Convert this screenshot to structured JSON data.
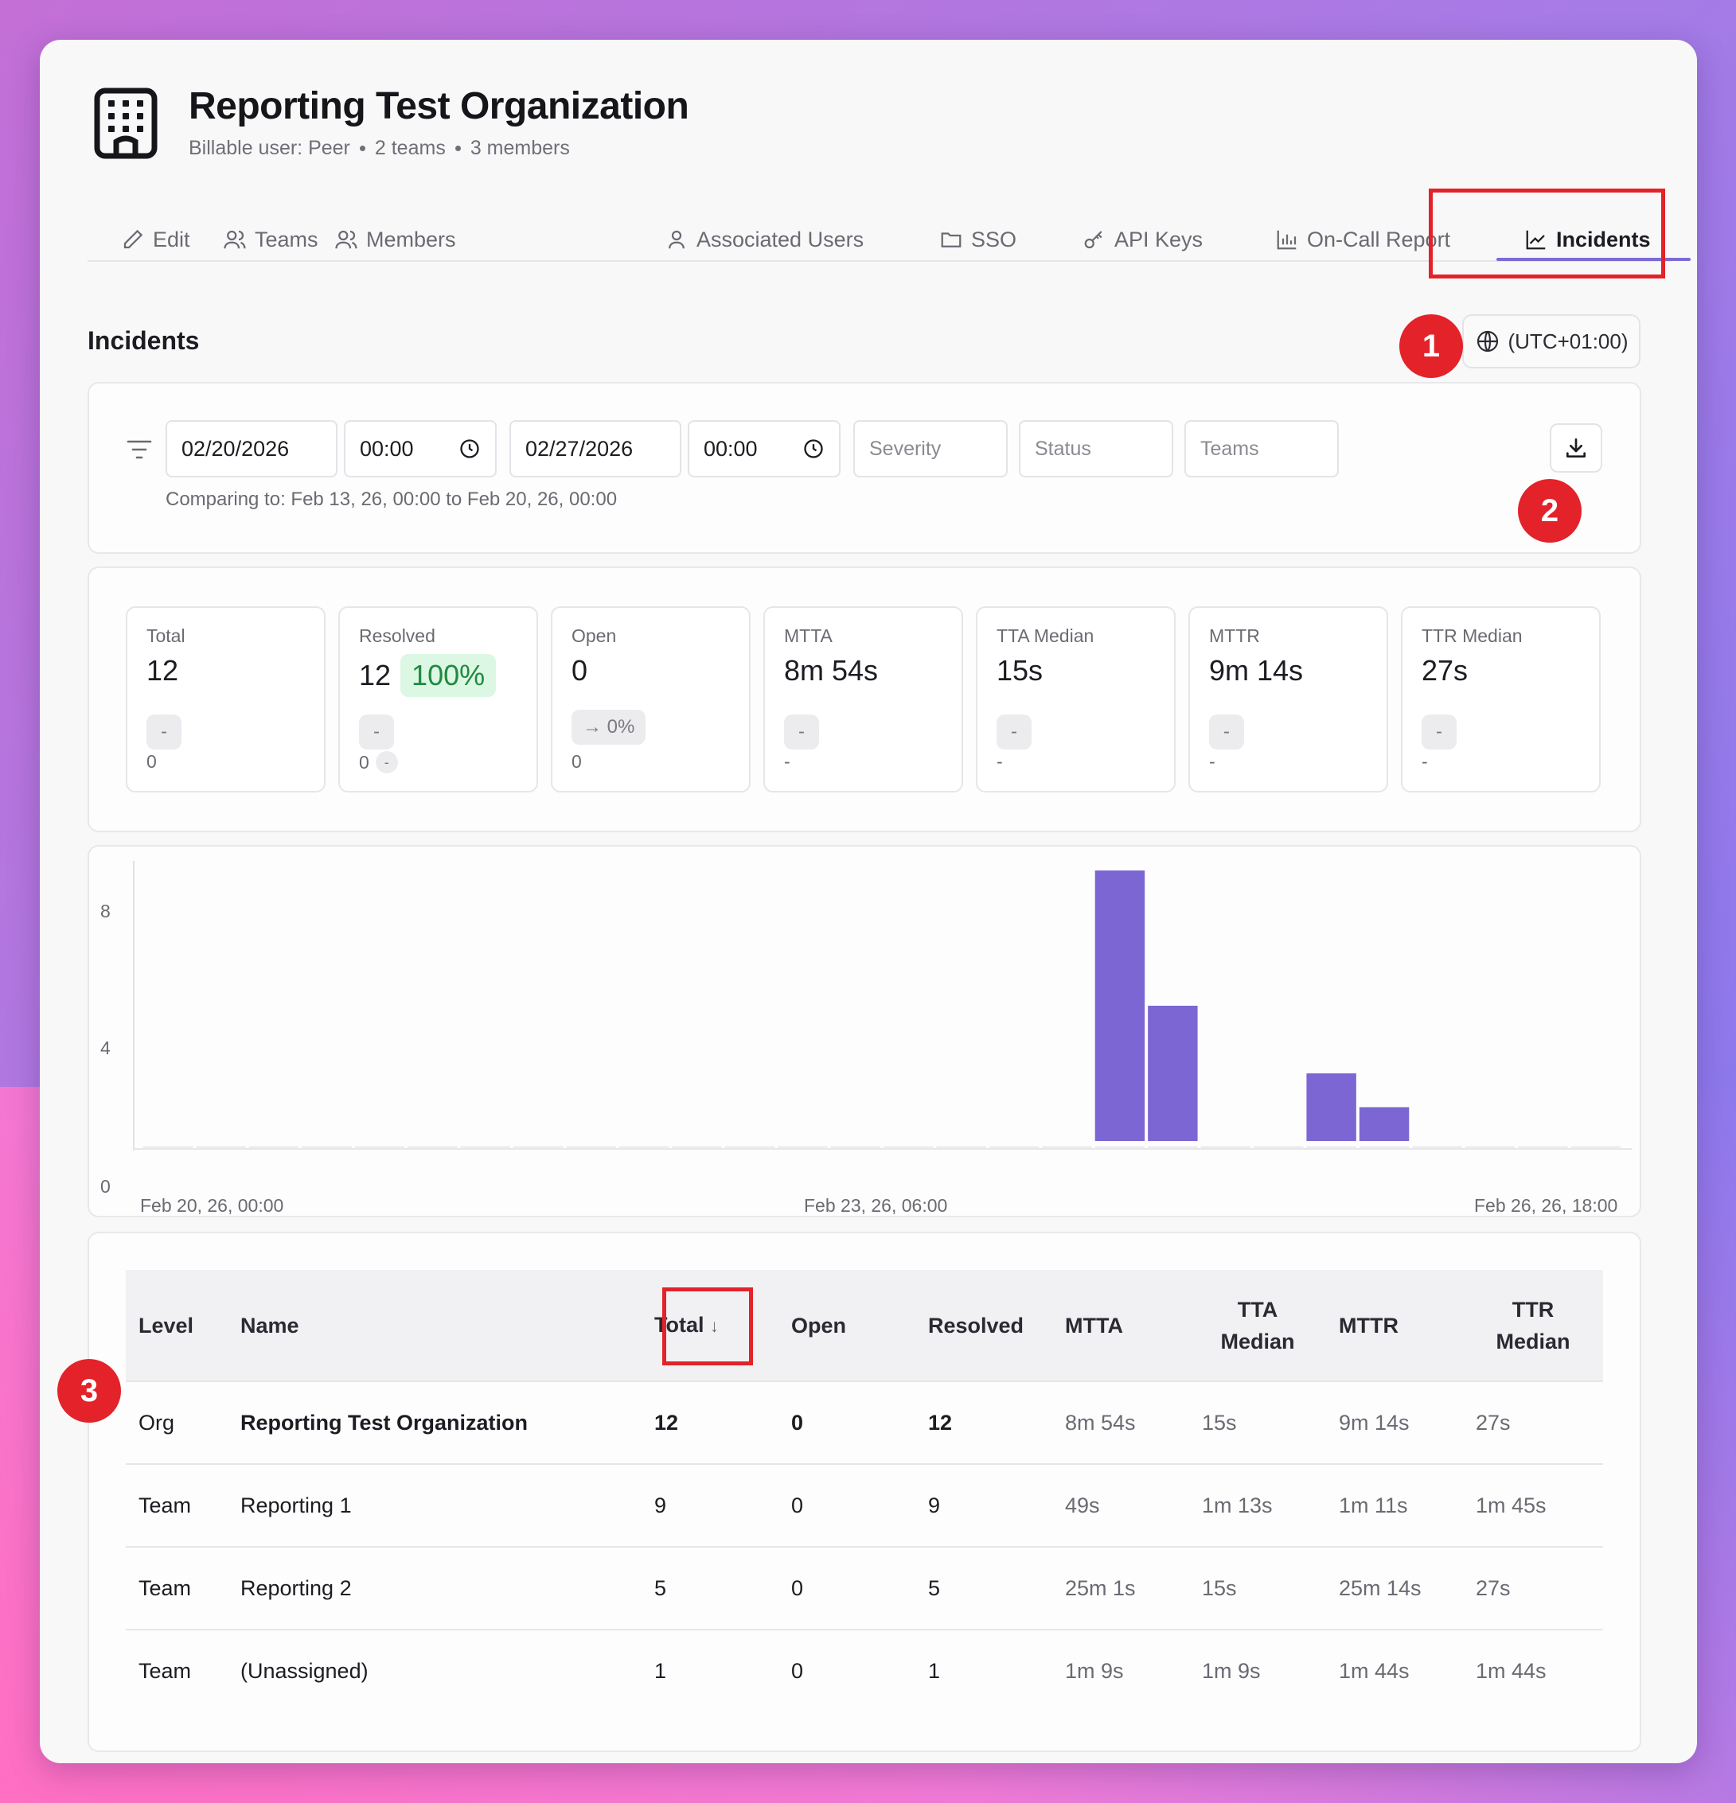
{
  "org": {
    "title": "Reporting Test Organization",
    "billable": "Billable user: Peer",
    "teams_count": "2 teams",
    "members_count": "3 members"
  },
  "tabs": [
    {
      "label": "Edit",
      "icon": "pencil-icon"
    },
    {
      "label": "Teams",
      "icon": "users-icon"
    },
    {
      "label": "Members",
      "icon": "users-icon"
    },
    {
      "label": "Associated Users",
      "icon": "user-icon"
    },
    {
      "label": "SSO",
      "icon": "folder-icon"
    },
    {
      "label": "API Keys",
      "icon": "key-icon"
    },
    {
      "label": "On-Call Report",
      "icon": "bar-chart-icon"
    },
    {
      "label": "Incidents",
      "icon": "line-chart-icon",
      "active": true
    }
  ],
  "section_title": "Incidents",
  "timezone": "(UTC+01:00)",
  "filters": {
    "start_date": "02/20/2026",
    "start_time": "00:00",
    "end_date": "02/27/2026",
    "end_time": "00:00",
    "severity_placeholder": "Severity",
    "status_placeholder": "Status",
    "teams_placeholder": "Teams",
    "comparing": "Comparing to: Feb 13, 26, 00:00 to Feb 20, 26, 00:00"
  },
  "annotations": {
    "one": "1",
    "two": "2",
    "three": "3"
  },
  "stats": [
    {
      "label": "Total",
      "value": "12",
      "chip": "-",
      "sub": "0"
    },
    {
      "label": "Resolved",
      "value": "12",
      "pct": "100%",
      "chip": "-",
      "sub": "0",
      "sub_chip": "-"
    },
    {
      "label": "Open",
      "value": "0",
      "chip": "→ 0%",
      "sub": "0"
    },
    {
      "label": "MTTA",
      "value": "8m 54s",
      "chip": "-",
      "sub": "-"
    },
    {
      "label": "TTA Median",
      "value": "15s",
      "chip": "-",
      "sub": "-"
    },
    {
      "label": "MTTR",
      "value": "9m 14s",
      "chip": "-",
      "sub": "-"
    },
    {
      "label": "TTR Median",
      "value": "27s",
      "chip": "-",
      "sub": "-"
    }
  ],
  "chart_data": {
    "type": "bar",
    "ylim": [
      0,
      8
    ],
    "yticks": [
      "8",
      "4",
      "0"
    ],
    "xticks": [
      "Feb 20, 26, 00:00",
      "Feb 23, 26, 06:00",
      "Feb 26, 26, 18:00"
    ],
    "bar_color": "#7b66d4",
    "bucket_count": 28,
    "values": [
      0,
      0,
      0,
      0,
      0,
      0,
      0,
      0,
      0,
      0,
      0,
      0,
      0,
      0,
      0,
      0,
      0,
      0,
      8,
      4,
      0,
      0,
      2,
      1,
      0,
      0,
      0,
      0
    ]
  },
  "table": {
    "headers": {
      "level": "Level",
      "name": "Name",
      "total": "Total",
      "open": "Open",
      "resolved": "Resolved",
      "mtta": "MTTA",
      "tta_median_1": "TTA",
      "tta_median_2": "Median",
      "mttr": "MTTR",
      "ttr_median_1": "TTR",
      "ttr_median_2": "Median"
    },
    "rows": [
      {
        "level": "Org",
        "name": "Reporting Test Organization",
        "total": "12",
        "open": "0",
        "resolved": "12",
        "mtta": "8m 54s",
        "tta_median": "15s",
        "mttr": "9m 14s",
        "ttr_median": "27s"
      },
      {
        "level": "Team",
        "name": "Reporting 1",
        "total": "9",
        "open": "0",
        "resolved": "9",
        "mtta": "49s",
        "tta_median": "1m 13s",
        "mttr": "1m 11s",
        "ttr_median": "1m 45s"
      },
      {
        "level": "Team",
        "name": "Reporting 2",
        "total": "5",
        "open": "0",
        "resolved": "5",
        "mtta": "25m 1s",
        "tta_median": "15s",
        "mttr": "25m 14s",
        "ttr_median": "27s"
      },
      {
        "level": "Team",
        "name": "(Unassigned)",
        "total": "1",
        "open": "0",
        "resolved": "1",
        "mtta": "1m 9s",
        "tta_median": "1m 9s",
        "mttr": "1m 44s",
        "ttr_median": "1m 44s"
      }
    ]
  }
}
